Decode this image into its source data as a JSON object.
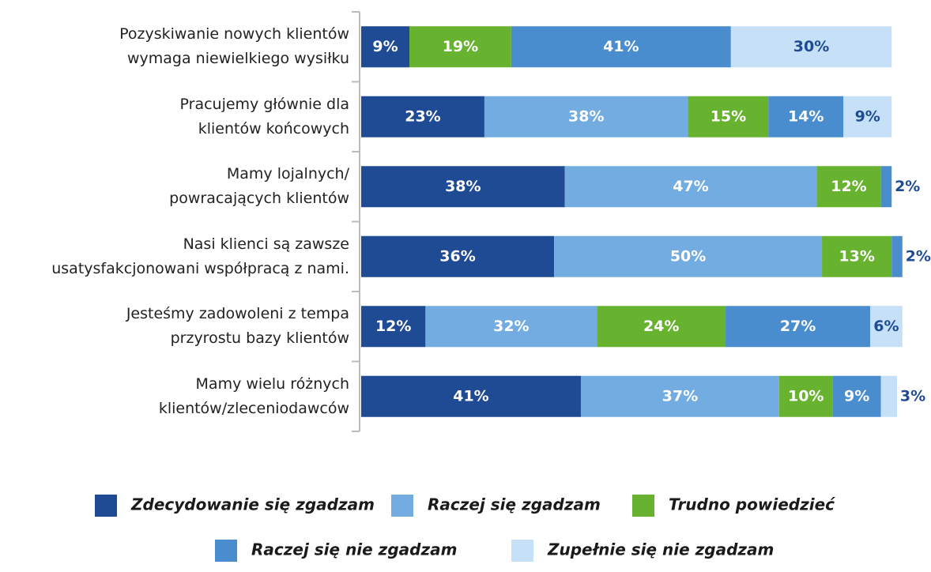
{
  "chart_data": {
    "type": "stacked-bar-horizontal",
    "categories": [
      "Pozyskiwanie nowych klientów\nwymaga niewielkiego wysiłku",
      "Pracujemy głównie dla\nklientów końcowych",
      "Mamy lojalnych/\npowracających klientów",
      "Nasi klienci są zawsze\nusatysfakcjonowani współpracą z nami.",
      "Jesteśmy zadowoleni z tempa\nprzyrostu bazy klientów",
      "Mamy wielu różnych\nklientów/zleceniodawców"
    ],
    "xlim": [
      0,
      100
    ],
    "series": [
      {
        "name": "Zdecydowanie się zgadzam",
        "color": "#1f4b94",
        "values": [
          9,
          23,
          38,
          36,
          12,
          41
        ],
        "value_labels": [
          "9%",
          "23%",
          "38%",
          "36%",
          "12%",
          "41%"
        ]
      },
      {
        "name": "Raczej się zgadzam",
        "color": "#72ace0",
        "values": [
          null,
          38,
          47,
          50,
          32,
          37
        ],
        "value_labels": [
          null,
          "38%",
          "47%",
          "50%",
          "32%",
          "37%"
        ]
      },
      {
        "name": "Trudno powiedzieć",
        "color": "#67b22f",
        "values": [
          19,
          15,
          12,
          13,
          24,
          10
        ],
        "value_labels": [
          "19%",
          "15%",
          "12%",
          "13%",
          "24%",
          "10%"
        ]
      },
      {
        "name": "Raczej się nie zgadzam",
        "color": "#4a8dcf",
        "values": [
          41,
          14,
          2,
          2,
          27,
          9
        ],
        "value_labels": [
          "41%",
          "14%",
          "2%",
          "2%",
          "27%",
          "9%"
        ]
      },
      {
        "name": "Zupełnie się nie zgadzam",
        "color": "#c6e1f7",
        "values": [
          30,
          9,
          null,
          null,
          6,
          3
        ],
        "value_labels": [
          "30%",
          "9%",
          null,
          null,
          "6%",
          "3%"
        ]
      }
    ]
  }
}
